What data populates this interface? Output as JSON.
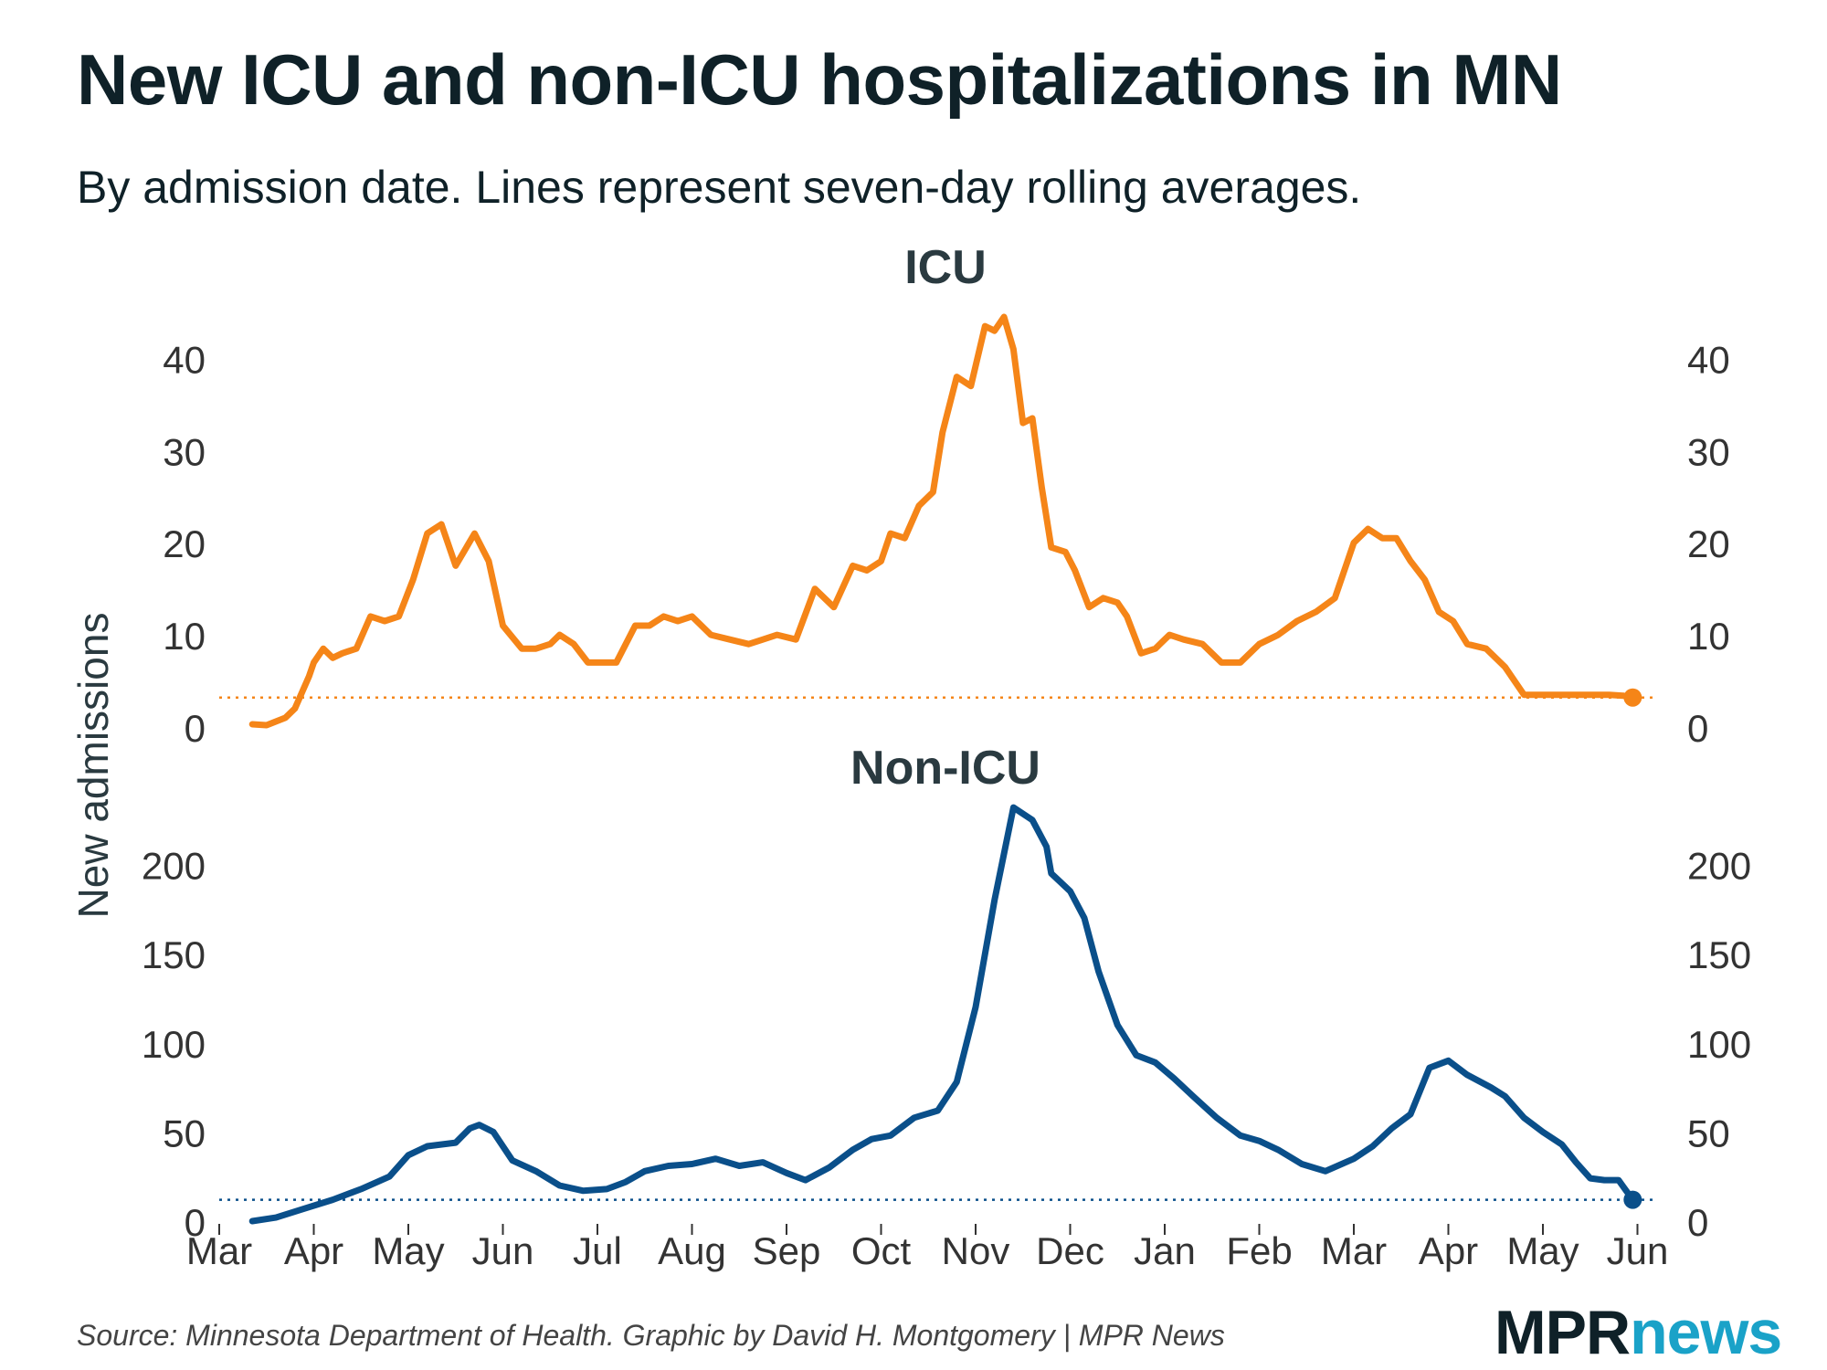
{
  "title": "New ICU and non-ICU hospitalizations in MN",
  "subtitle": "By admission date. Lines represent seven-day rolling averages.",
  "source": "Source: Minnesota Department of Health. Graphic by David H. Montgomery | MPR News",
  "logo": {
    "part1": "MPR",
    "part2": "news"
  },
  "colors": {
    "icu": "#f58518",
    "non_icu": "#0a4f8a",
    "text": "#0f2128",
    "axis": "#333333",
    "logo_accent": "#1aa2c8"
  },
  "chart_data": [
    {
      "type": "line",
      "title": "ICU",
      "ylabel": "New admissions",
      "x_months": [
        "Mar",
        "Apr",
        "May",
        "Jun",
        "Jul",
        "Aug",
        "Sep",
        "Oct",
        "Nov",
        "Dec",
        "Jan",
        "Feb",
        "Mar",
        "Apr",
        "May",
        "Jun"
      ],
      "yticks": [
        0,
        10,
        20,
        30,
        40
      ],
      "ylim": [
        0,
        45
      ],
      "latest_value": 3.2,
      "series": [
        {
          "name": "ICU",
          "x": [
            0.35,
            0.5,
            0.7,
            0.8,
            0.95,
            1.0,
            1.1,
            1.2,
            1.3,
            1.45,
            1.6,
            1.75,
            1.9,
            2.05,
            2.2,
            2.35,
            2.5,
            2.7,
            2.85,
            3.0,
            3.2,
            3.35,
            3.5,
            3.6,
            3.75,
            3.9,
            4.05,
            4.2,
            4.4,
            4.55,
            4.7,
            4.85,
            5.0,
            5.2,
            5.4,
            5.6,
            5.75,
            5.9,
            6.1,
            6.3,
            6.5,
            6.7,
            6.85,
            7.0,
            7.1,
            7.25,
            7.4,
            7.55,
            7.65,
            7.8,
            7.95,
            8.1,
            8.2,
            8.3,
            8.4,
            8.5,
            8.6,
            8.7,
            8.8,
            8.95,
            9.05,
            9.2,
            9.35,
            9.5,
            9.6,
            9.75,
            9.9,
            10.05,
            10.2,
            10.4,
            10.6,
            10.8,
            11.0,
            11.2,
            11.4,
            11.6,
            11.8,
            12.0,
            12.15,
            12.3,
            12.45,
            12.6,
            12.75,
            12.9,
            13.05,
            13.2,
            13.4,
            13.6,
            13.8,
            13.95,
            14.1,
            14.25,
            14.4,
            14.55,
            14.7,
            14.85,
            14.95
          ],
          "values": [
            0.3,
            0.2,
            1.0,
            2.0,
            5.5,
            7.0,
            8.5,
            7.5,
            8.0,
            8.5,
            12.0,
            11.5,
            12.0,
            16.0,
            21.0,
            22.0,
            17.5,
            21.0,
            18.0,
            11.0,
            8.5,
            8.5,
            9.0,
            10.0,
            9.0,
            7.0,
            7.0,
            7.0,
            11.0,
            11.0,
            12.0,
            11.5,
            12.0,
            10.0,
            9.5,
            9.0,
            9.5,
            10.0,
            9.5,
            15.0,
            13.0,
            17.5,
            17.0,
            18.0,
            21.0,
            20.5,
            24.0,
            25.5,
            32.0,
            38.0,
            37.0,
            43.5,
            43.0,
            44.5,
            41.0,
            33.0,
            33.5,
            26.0,
            19.5,
            19.0,
            17.0,
            13.0,
            14.0,
            13.5,
            12.0,
            8.0,
            8.5,
            10.0,
            9.5,
            9.0,
            7.0,
            7.0,
            9.0,
            10.0,
            11.5,
            12.5,
            14.0,
            20.0,
            21.5,
            20.5,
            20.5,
            18.0,
            16.0,
            12.5,
            11.5,
            9.0,
            8.5,
            6.5,
            3.5,
            3.5,
            3.5,
            3.5,
            3.5,
            3.5,
            3.5,
            3.4,
            3.2
          ]
        }
      ]
    },
    {
      "type": "line",
      "title": "Non-ICU",
      "ylabel": "New admissions",
      "x_months": [
        "Mar",
        "Apr",
        "May",
        "Jun",
        "Jul",
        "Aug",
        "Sep",
        "Oct",
        "Nov",
        "Dec",
        "Jan",
        "Feb",
        "Mar",
        "Apr",
        "May",
        "Jun"
      ],
      "yticks": [
        0,
        50,
        100,
        150,
        200
      ],
      "ylim": [
        0,
        230
      ],
      "latest_value": 12,
      "series": [
        {
          "name": "Non-ICU",
          "x": [
            0.35,
            0.6,
            0.9,
            1.2,
            1.5,
            1.8,
            2.0,
            2.2,
            2.5,
            2.65,
            2.75,
            2.9,
            3.1,
            3.35,
            3.6,
            3.85,
            4.1,
            4.3,
            4.5,
            4.75,
            5.0,
            5.25,
            5.5,
            5.75,
            6.0,
            6.2,
            6.45,
            6.7,
            6.9,
            7.1,
            7.35,
            7.6,
            7.8,
            8.0,
            8.2,
            8.4,
            8.6,
            8.75,
            8.8,
            8.9,
            9.0,
            9.15,
            9.3,
            9.5,
            9.7,
            9.9,
            10.1,
            10.3,
            10.55,
            10.8,
            11.0,
            11.2,
            11.45,
            11.7,
            12.0,
            12.2,
            12.4,
            12.6,
            12.8,
            13.0,
            13.2,
            13.45,
            13.6,
            13.8,
            14.0,
            14.2,
            14.35,
            14.5,
            14.65,
            14.8,
            14.95
          ],
          "values": [
            0,
            2,
            7,
            12,
            18,
            25,
            37,
            42,
            44,
            52,
            54,
            50,
            34,
            28,
            20,
            17,
            18,
            22,
            28,
            31,
            32,
            35,
            31,
            33,
            27,
            23,
            30,
            40,
            46,
            48,
            58,
            62,
            78,
            120,
            180,
            232,
            225,
            210,
            195,
            190,
            185,
            170,
            140,
            110,
            93,
            89,
            80,
            70,
            58,
            48,
            45,
            40,
            32,
            28,
            35,
            42,
            52,
            60,
            86,
            90,
            82,
            75,
            70,
            58,
            50,
            43,
            33,
            24,
            23,
            23,
            12
          ]
        }
      ]
    }
  ]
}
